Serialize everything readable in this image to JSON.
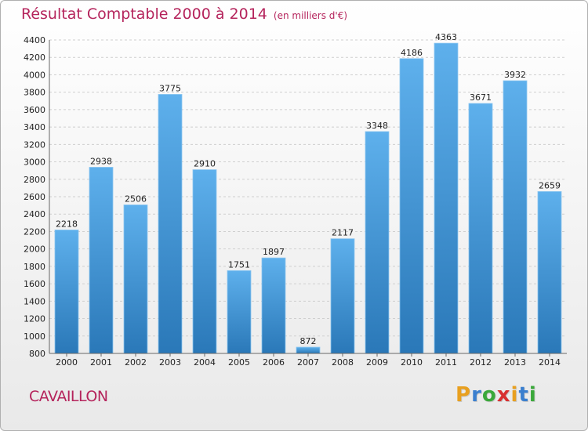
{
  "title": "Résultat Comptable 2000 à 2014",
  "unit": "(en milliers d'€)",
  "place": "CAVAILLON",
  "logo": {
    "letters": [
      "P",
      "r",
      "o",
      "x",
      "i",
      "t",
      "i"
    ],
    "colors": [
      "#e8a020",
      "#3a7fcf",
      "#3aa83a",
      "#d83030",
      "#e8a020",
      "#3a7fcf",
      "#3aa83a"
    ]
  },
  "colors": {
    "bar_top": "#5eb0ec",
    "bar_bottom": "#2a78b8",
    "text_accent": "#b5245c"
  },
  "chart_data": {
    "type": "bar",
    "title": "Résultat Comptable 2000 à 2014",
    "xlabel": "",
    "ylabel": "",
    "categories": [
      "2000",
      "2001",
      "2002",
      "2003",
      "2004",
      "2005",
      "2006",
      "2007",
      "2008",
      "2009",
      "2010",
      "2011",
      "2012",
      "2013",
      "2014"
    ],
    "values": [
      2218,
      2938,
      2506,
      3775,
      2910,
      1751,
      1897,
      872,
      2117,
      3348,
      4186,
      4363,
      3671,
      3932,
      2659
    ],
    "ylim": [
      800,
      4400
    ],
    "yticks": [
      800,
      1000,
      1200,
      1400,
      1600,
      1800,
      2000,
      2200,
      2400,
      2600,
      2800,
      3000,
      3200,
      3400,
      3600,
      3800,
      4000,
      4200,
      4400
    ],
    "grid": true,
    "legend": "none"
  }
}
